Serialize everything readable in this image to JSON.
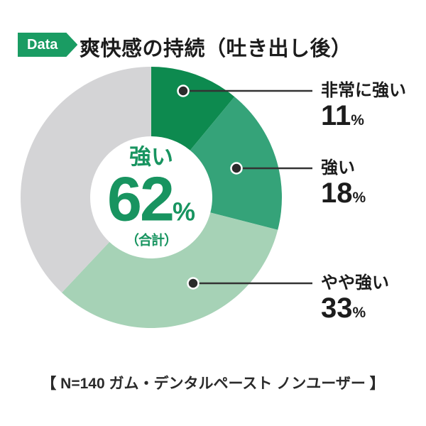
{
  "header": {
    "badge_label": "Data",
    "title": "爽快感の持続（吐き出し後）"
  },
  "chart_data": {
    "type": "pie",
    "subtype": "donut",
    "title": "爽快感の持続（吐き出し後）",
    "unit": "%",
    "start_angle": "12-oclock",
    "direction": "clockwise",
    "segments": [
      {
        "label": "非常に強い",
        "value": 11,
        "color": "#0d8a4f"
      },
      {
        "label": "強い",
        "value": 18,
        "color": "#35a379"
      },
      {
        "label": "やや強い",
        "value": 33,
        "color": "#a6d2b6"
      },
      {
        "label": "",
        "value": 38,
        "color": "#d4d4d6"
      }
    ],
    "center": {
      "label": "強い",
      "value": "62",
      "unit": "%",
      "note": "（合計）"
    },
    "legend_position": "right-callouts"
  },
  "footer": {
    "text": "【 N=140 ガム・デンタルペースト ノンユーザー 】"
  },
  "colors": {
    "badge_green": "#1a9c63",
    "center_text_green": "#189460",
    "text_dark": "#1c1c1c",
    "leader_line": "#333333",
    "leader_dot": "#2b2b2b",
    "background": "#ffffff"
  }
}
